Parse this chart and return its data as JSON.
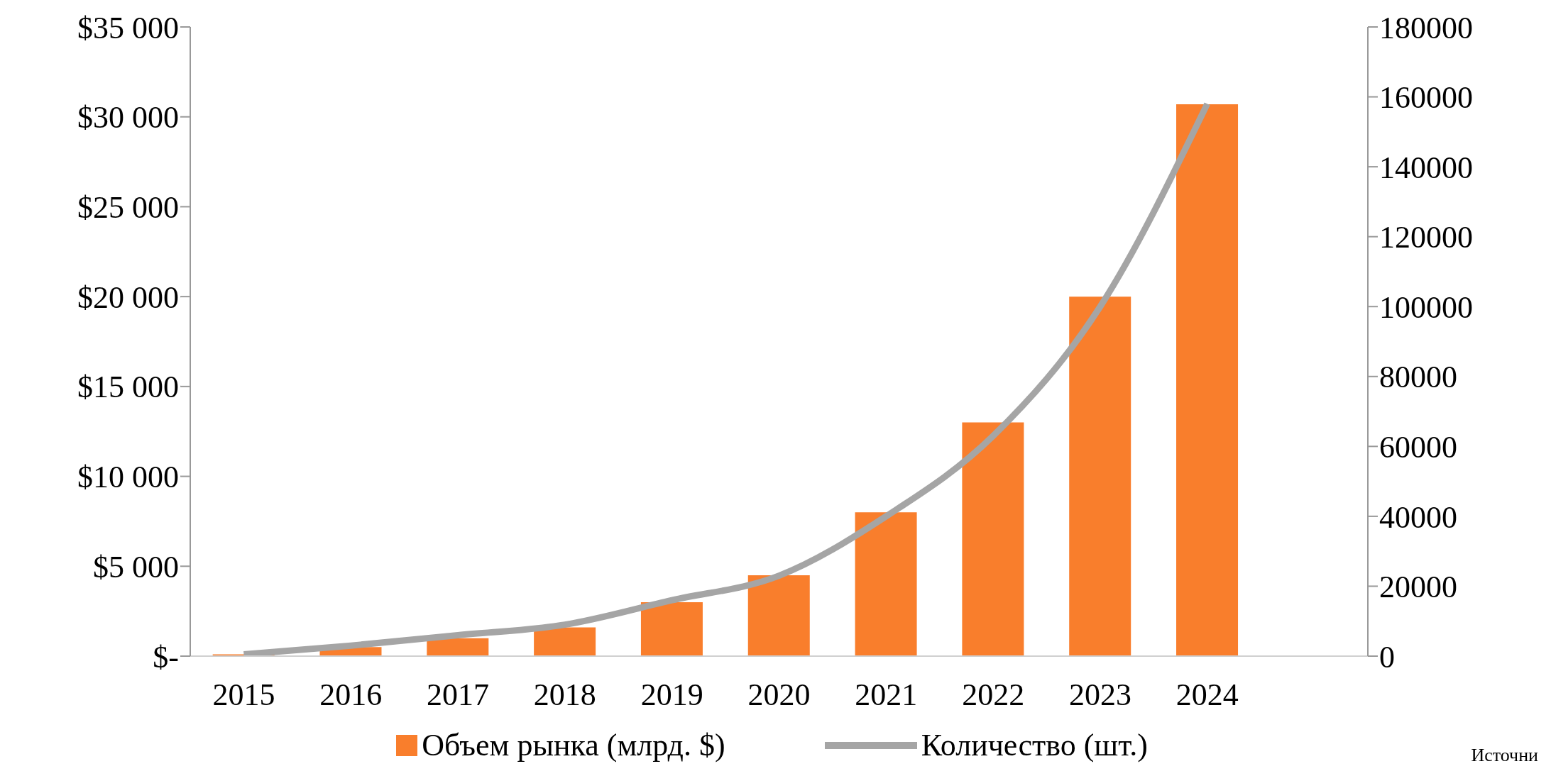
{
  "chart_data": {
    "type": "bar",
    "categories": [
      "2015",
      "2016",
      "2017",
      "2018",
      "2019",
      "2020",
      "2021",
      "2022",
      "2023",
      "2024",
      null
    ],
    "series": [
      {
        "name": "Объем рынка (млрд. $)",
        "color": "#f97e2c",
        "values": [
          100,
          500,
          1000,
          1600,
          3000,
          4500,
          8000,
          13000,
          20000,
          30700,
          null
        ]
      },
      {
        "name": "Количество (шт.)",
        "type": "line",
        "axis": "y2",
        "color": "#a5a5a5",
        "values": [
          500,
          3000,
          6000,
          9000,
          16000,
          23000,
          40000,
          63000,
          100000,
          158000,
          null
        ]
      }
    ],
    "ylim": [
      0,
      35000
    ],
    "yticks": [
      {
        "value": 0,
        "label": "$-"
      },
      {
        "value": 5000,
        "label": "$5 000"
      },
      {
        "value": 10000,
        "label": "$10 000"
      },
      {
        "value": 15000,
        "label": "$15 000"
      },
      {
        "value": 20000,
        "label": "$20 000"
      },
      {
        "value": 25000,
        "label": "$25 000"
      },
      {
        "value": 30000,
        "label": "$30 000"
      },
      {
        "value": 35000,
        "label": "$35 000"
      }
    ],
    "y2lim": [
      0,
      180000
    ],
    "y2ticks": [
      0,
      20000,
      40000,
      60000,
      80000,
      100000,
      120000,
      140000,
      160000,
      180000
    ],
    "legend": "bottom",
    "grid": false,
    "marker": "none",
    "line_style": "solid",
    "annotations": [
      "Источни"
    ]
  }
}
